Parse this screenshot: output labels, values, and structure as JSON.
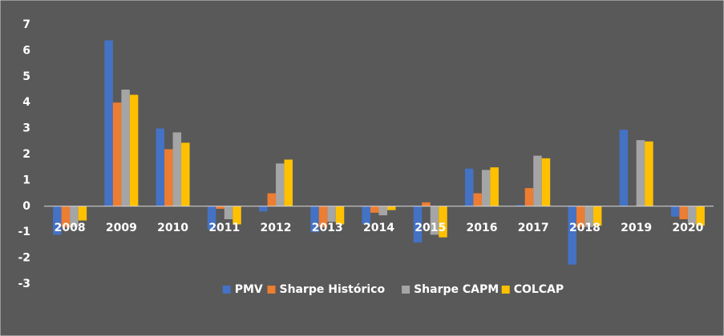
{
  "chart_data": {
    "type": "bar",
    "categories": [
      "2008",
      "2009",
      "2010",
      "2011",
      "2012",
      "2013",
      "2014",
      "2015",
      "2016",
      "2017",
      "2018",
      "2019",
      "2020"
    ],
    "series": [
      {
        "name": "PMV",
        "color": "#4472c4",
        "values": [
          -1.1,
          6.4,
          3.0,
          -0.9,
          -0.2,
          -1.0,
          -0.7,
          -1.4,
          1.45,
          0.05,
          -2.25,
          2.95,
          -0.4
        ]
      },
      {
        "name": "Sharpe Histórico",
        "color": "#ed7d31",
        "values": [
          -0.8,
          4.0,
          2.2,
          -0.1,
          0.5,
          -0.8,
          -0.25,
          0.15,
          0.5,
          0.7,
          -0.8,
          0,
          -0.5
        ]
      },
      {
        "name": "Sharpe CAPM",
        "color": "#a5a5a5",
        "values": [
          -0.8,
          4.5,
          2.85,
          -0.5,
          1.65,
          -0.6,
          -0.35,
          -1.1,
          1.4,
          1.95,
          -0.8,
          2.55,
          -0.7
        ]
      },
      {
        "name": "COLCAP",
        "color": "#ffc000",
        "values": [
          -0.55,
          4.3,
          2.45,
          -0.7,
          1.8,
          -0.7,
          -0.15,
          -1.2,
          1.5,
          1.85,
          -0.75,
          2.5,
          -0.75
        ]
      }
    ],
    "ylim": [
      -3,
      7
    ],
    "yticks": [
      -3,
      -2,
      -1,
      0,
      1,
      2,
      3,
      4,
      5,
      6,
      7
    ],
    "grid": false,
    "legend": "bottom"
  }
}
